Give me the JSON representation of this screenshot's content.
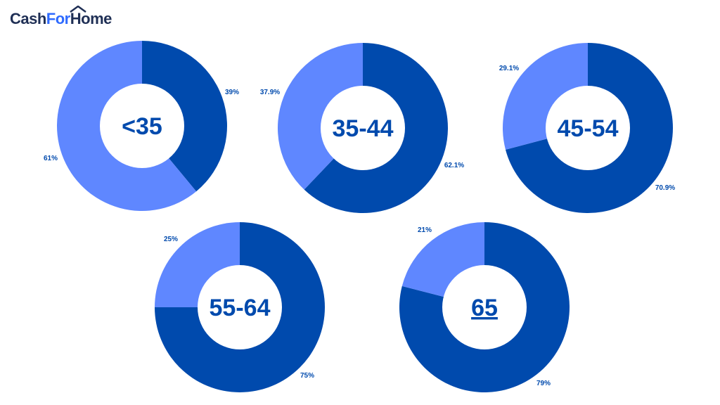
{
  "logo": {
    "part1": "Cash",
    "part2": "For",
    "part3": "Home"
  },
  "colors": {
    "dark": "#004aad",
    "light": "#5f87ff",
    "text": "#004aad",
    "logo_dark": "#1f2f55",
    "logo_accent": "#2f6bff"
  },
  "chart_data": [
    {
      "type": "pie",
      "center_label": "<35",
      "underline": false,
      "slices": [
        {
          "value": 39,
          "label": "39%",
          "shade": "dark"
        },
        {
          "value": 61,
          "label": "61%",
          "shade": "light"
        }
      ]
    },
    {
      "type": "pie",
      "center_label": "35-44",
      "underline": false,
      "slices": [
        {
          "value": 62.1,
          "label": "62.1%",
          "shade": "dark"
        },
        {
          "value": 37.9,
          "label": "37.9%",
          "shade": "light"
        }
      ]
    },
    {
      "type": "pie",
      "center_label": "45-54",
      "underline": false,
      "slices": [
        {
          "value": 70.9,
          "label": "70.9%",
          "shade": "dark"
        },
        {
          "value": 29.1,
          "label": "29.1%",
          "shade": "light"
        }
      ]
    },
    {
      "type": "pie",
      "center_label": "55-64",
      "underline": false,
      "slices": [
        {
          "value": 75,
          "label": "75%",
          "shade": "dark"
        },
        {
          "value": 25,
          "label": "25%",
          "shade": "light"
        }
      ]
    },
    {
      "type": "pie",
      "center_label": "65",
      "underline": true,
      "slices": [
        {
          "value": 79,
          "label": "79%",
          "shade": "dark"
        },
        {
          "value": 21,
          "label": "21%",
          "shade": "light"
        }
      ]
    }
  ]
}
